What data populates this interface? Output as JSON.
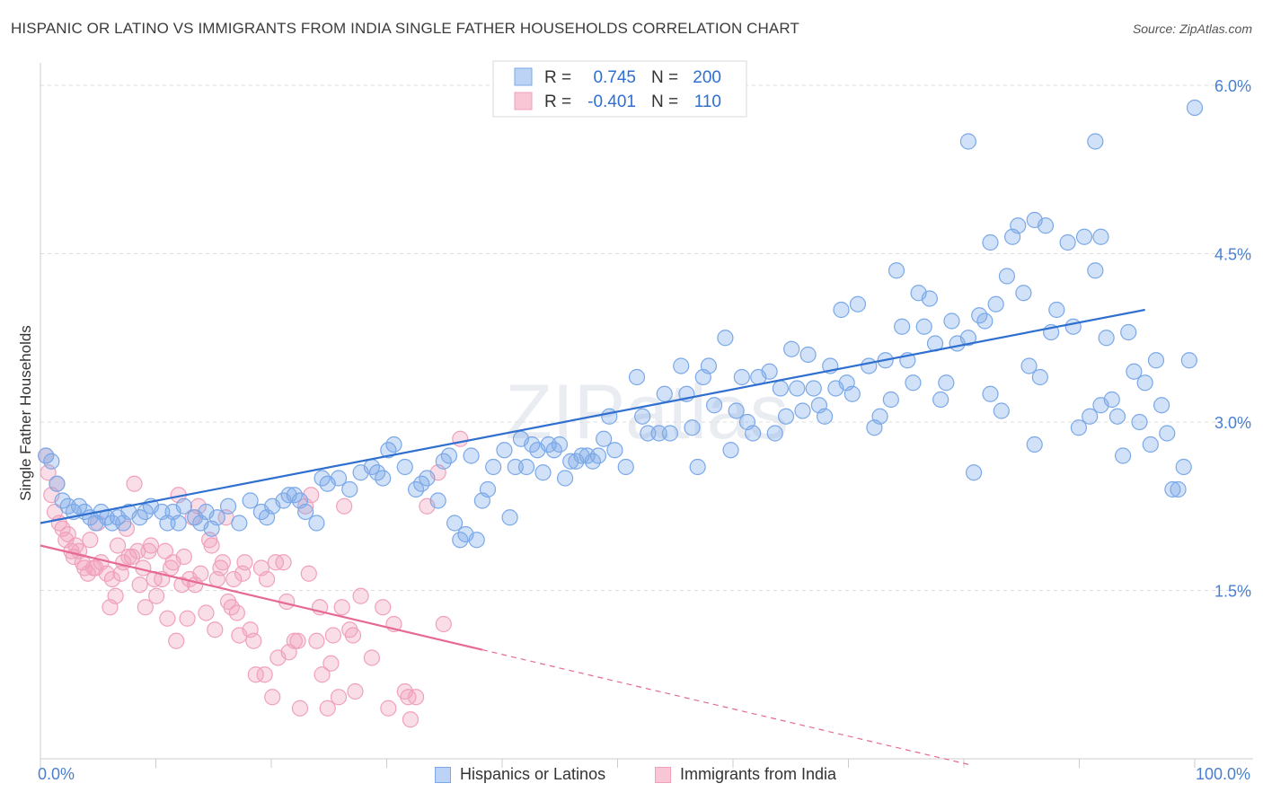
{
  "header": {
    "title": "HISPANIC OR LATINO VS IMMIGRANTS FROM INDIA SINGLE FATHER HOUSEHOLDS CORRELATION CHART",
    "source": "Source: ZipAtlas.com"
  },
  "colors": {
    "blue": "#7aa8e8",
    "blue_line": "#2f6fcf",
    "pink": "#f0a0ba",
    "pink_line": "#e66a93",
    "axis_text": "#4a7fcf"
  },
  "chart_data": {
    "type": "scatter",
    "xlabel": "",
    "ylabel": "Single Father Households",
    "xlim": [
      0,
      100
    ],
    "ylim": [
      0,
      6.2
    ],
    "x_ticks_labels": [
      "0.0%",
      "100.0%"
    ],
    "y_ticks": [
      1.5,
      3.0,
      4.5,
      6.0
    ],
    "y_tick_labels": [
      "1.5%",
      "3.0%",
      "4.5%",
      "6.0%"
    ],
    "watermark": "ZIPatlas",
    "legend": [
      {
        "r_label": "R =",
        "r_value": "0.745",
        "n_label": "N =",
        "n_value": "200"
      },
      {
        "r_label": "R =",
        "r_value": "-0.401",
        "n_label": "N =",
        "n_value": "110"
      }
    ],
    "series": [
      {
        "name": "Hispanics or Latinos",
        "trend": {
          "x": [
            0,
            100
          ],
          "y": [
            2.1,
            4.0
          ],
          "solid_to": 100
        },
        "points": [
          [
            0.5,
            2.7
          ],
          [
            1,
            2.65
          ],
          [
            1.5,
            2.45
          ],
          [
            2,
            2.3
          ],
          [
            2.5,
            2.25
          ],
          [
            3,
            2.2
          ],
          [
            3.5,
            2.25
          ],
          [
            4,
            2.2
          ],
          [
            4.5,
            2.15
          ],
          [
            5,
            2.1
          ],
          [
            5.5,
            2.2
          ],
          [
            6,
            2.15
          ],
          [
            6.5,
            2.1
          ],
          [
            7,
            2.15
          ],
          [
            7.5,
            2.1
          ],
          [
            8,
            2.2
          ],
          [
            9,
            2.15
          ],
          [
            9.5,
            2.2
          ],
          [
            10,
            2.25
          ],
          [
            11,
            2.2
          ],
          [
            11.5,
            2.1
          ],
          [
            12,
            2.2
          ],
          [
            12.5,
            2.1
          ],
          [
            13,
            2.25
          ],
          [
            14,
            2.15
          ],
          [
            14.5,
            2.1
          ],
          [
            15,
            2.2
          ],
          [
            15.5,
            2.05
          ],
          [
            16,
            2.15
          ],
          [
            17,
            2.25
          ],
          [
            18,
            2.1
          ],
          [
            19,
            2.3
          ],
          [
            20,
            2.2
          ],
          [
            20.5,
            2.15
          ],
          [
            21,
            2.25
          ],
          [
            22,
            2.3
          ],
          [
            22.5,
            2.35
          ],
          [
            23,
            2.35
          ],
          [
            23.5,
            2.3
          ],
          [
            24,
            2.2
          ],
          [
            25,
            2.1
          ],
          [
            25.5,
            2.5
          ],
          [
            26,
            2.45
          ],
          [
            27,
            2.5
          ],
          [
            28,
            2.4
          ],
          [
            29,
            2.55
          ],
          [
            30,
            2.6
          ],
          [
            30.5,
            2.55
          ],
          [
            31,
            2.5
          ],
          [
            31.5,
            2.75
          ],
          [
            32,
            2.8
          ],
          [
            33,
            2.6
          ],
          [
            34,
            2.4
          ],
          [
            34.5,
            2.45
          ],
          [
            35,
            2.5
          ],
          [
            36,
            2.3
          ],
          [
            36.5,
            2.65
          ],
          [
            37,
            2.7
          ],
          [
            37.5,
            2.1
          ],
          [
            38,
            1.95
          ],
          [
            38.5,
            2.0
          ],
          [
            39,
            2.7
          ],
          [
            39.5,
            1.95
          ],
          [
            40,
            2.3
          ],
          [
            40.5,
            2.4
          ],
          [
            41,
            2.6
          ],
          [
            42,
            2.75
          ],
          [
            42.5,
            2.15
          ],
          [
            43,
            2.6
          ],
          [
            43.5,
            2.85
          ],
          [
            44,
            2.6
          ],
          [
            44.5,
            2.8
          ],
          [
            45,
            2.75
          ],
          [
            45.5,
            2.55
          ],
          [
            46,
            2.8
          ],
          [
            46.5,
            2.75
          ],
          [
            47,
            2.8
          ],
          [
            47.5,
            2.5
          ],
          [
            48,
            2.65
          ],
          [
            48.5,
            2.65
          ],
          [
            49,
            2.7
          ],
          [
            49.5,
            2.7
          ],
          [
            50,
            2.65
          ],
          [
            50.5,
            2.7
          ],
          [
            51,
            2.85
          ],
          [
            51.5,
            3.05
          ],
          [
            52,
            2.75
          ],
          [
            53,
            2.6
          ],
          [
            54,
            3.4
          ],
          [
            54.5,
            3.05
          ],
          [
            55,
            2.9
          ],
          [
            56,
            2.9
          ],
          [
            56.5,
            3.25
          ],
          [
            57,
            2.9
          ],
          [
            58,
            3.5
          ],
          [
            58.5,
            3.25
          ],
          [
            59,
            2.95
          ],
          [
            59.5,
            2.6
          ],
          [
            60,
            3.4
          ],
          [
            60.5,
            3.5
          ],
          [
            61,
            3.15
          ],
          [
            62,
            3.75
          ],
          [
            62.5,
            2.75
          ],
          [
            63,
            3.1
          ],
          [
            63.5,
            3.4
          ],
          [
            64,
            3.0
          ],
          [
            64.5,
            2.9
          ],
          [
            65,
            3.4
          ],
          [
            66,
            3.45
          ],
          [
            66.5,
            2.9
          ],
          [
            67,
            3.3
          ],
          [
            67.5,
            3.05
          ],
          [
            68,
            3.65
          ],
          [
            68.5,
            3.3
          ],
          [
            69,
            3.1
          ],
          [
            69.5,
            3.6
          ],
          [
            70,
            3.3
          ],
          [
            70.5,
            3.15
          ],
          [
            71,
            3.05
          ],
          [
            71.5,
            3.5
          ],
          [
            72,
            3.3
          ],
          [
            72.5,
            4.0
          ],
          [
            73,
            3.35
          ],
          [
            73.5,
            3.25
          ],
          [
            74,
            4.05
          ],
          [
            75,
            3.5
          ],
          [
            75.5,
            2.95
          ],
          [
            76,
            3.05
          ],
          [
            76.5,
            3.55
          ],
          [
            77,
            3.2
          ],
          [
            77.5,
            4.35
          ],
          [
            78,
            3.85
          ],
          [
            78.5,
            3.55
          ],
          [
            79,
            3.35
          ],
          [
            79.5,
            4.15
          ],
          [
            80,
            3.85
          ],
          [
            80.5,
            4.1
          ],
          [
            81,
            3.7
          ],
          [
            81.5,
            3.2
          ],
          [
            82,
            3.35
          ],
          [
            82.5,
            3.9
          ],
          [
            83,
            3.7
          ],
          [
            84,
            3.75
          ],
          [
            84.5,
            2.55
          ],
          [
            85,
            3.95
          ],
          [
            85.5,
            3.9
          ],
          [
            86,
            3.25
          ],
          [
            86.5,
            4.05
          ],
          [
            87,
            3.1
          ],
          [
            87.5,
            4.3
          ],
          [
            88,
            4.65
          ],
          [
            88.5,
            4.75
          ],
          [
            89,
            4.15
          ],
          [
            89.5,
            3.5
          ],
          [
            90,
            2.8
          ],
          [
            90.5,
            3.4
          ],
          [
            91,
            4.75
          ],
          [
            91.5,
            3.8
          ],
          [
            92,
            4.0
          ],
          [
            93,
            4.6
          ],
          [
            93.5,
            3.85
          ],
          [
            94,
            2.95
          ],
          [
            94.5,
            4.65
          ],
          [
            95,
            3.05
          ],
          [
            95.5,
            4.35
          ],
          [
            96,
            3.15
          ],
          [
            96.5,
            3.75
          ],
          [
            97,
            3.2
          ],
          [
            97.5,
            3.05
          ],
          [
            98,
            2.7
          ],
          [
            98.5,
            3.8
          ],
          [
            99,
            3.45
          ],
          [
            99.5,
            3.0
          ],
          [
            100,
            3.35
          ],
          [
            100.5,
            2.8
          ],
          [
            101,
            3.55
          ],
          [
            101.5,
            3.15
          ],
          [
            102,
            2.9
          ],
          [
            102.5,
            2.4
          ],
          [
            103,
            2.4
          ],
          [
            103.5,
            2.6
          ],
          [
            104,
            3.55
          ],
          [
            104.5,
            5.8
          ],
          [
            84,
            5.5
          ],
          [
            95.5,
            5.5
          ],
          [
            90,
            4.8
          ],
          [
            96,
            4.65
          ],
          [
            86,
            4.6
          ]
        ]
      },
      {
        "name": "Immigrants from India",
        "trend": {
          "x": [
            0,
            84
          ],
          "y": [
            1.9,
            -0.05
          ],
          "solid_to": 40
        },
        "points": [
          [
            0.5,
            2.7
          ],
          [
            0.7,
            2.55
          ],
          [
            1,
            2.35
          ],
          [
            1.3,
            2.2
          ],
          [
            1.5,
            2.45
          ],
          [
            1.7,
            2.1
          ],
          [
            2,
            2.05
          ],
          [
            2.3,
            1.95
          ],
          [
            2.5,
            2.0
          ],
          [
            2.8,
            1.85
          ],
          [
            3,
            1.8
          ],
          [
            3.2,
            1.9
          ],
          [
            3.5,
            1.85
          ],
          [
            3.8,
            1.75
          ],
          [
            4,
            1.7
          ],
          [
            4.3,
            1.65
          ],
          [
            4.5,
            1.95
          ],
          [
            4.8,
            1.7
          ],
          [
            5,
            1.7
          ],
          [
            5.2,
            2.1
          ],
          [
            5.5,
            1.75
          ],
          [
            6,
            1.65
          ],
          [
            6.3,
            1.35
          ],
          [
            6.5,
            1.6
          ],
          [
            6.8,
            1.45
          ],
          [
            7,
            1.9
          ],
          [
            7.3,
            1.65
          ],
          [
            7.5,
            1.75
          ],
          [
            7.8,
            2.05
          ],
          [
            8,
            1.8
          ],
          [
            8.3,
            1.8
          ],
          [
            8.5,
            2.45
          ],
          [
            8.8,
            1.85
          ],
          [
            9,
            1.55
          ],
          [
            9.3,
            1.7
          ],
          [
            9.5,
            1.35
          ],
          [
            9.8,
            1.85
          ],
          [
            10,
            1.9
          ],
          [
            10.3,
            1.6
          ],
          [
            10.5,
            1.45
          ],
          [
            11,
            1.6
          ],
          [
            11.3,
            1.85
          ],
          [
            11.5,
            1.25
          ],
          [
            11.8,
            1.7
          ],
          [
            12,
            1.75
          ],
          [
            12.3,
            1.05
          ],
          [
            12.5,
            2.35
          ],
          [
            12.8,
            1.55
          ],
          [
            13,
            1.8
          ],
          [
            13.3,
            1.25
          ],
          [
            13.5,
            1.6
          ],
          [
            13.8,
            2.15
          ],
          [
            14,
            1.55
          ],
          [
            14.3,
            2.25
          ],
          [
            14.5,
            1.65
          ],
          [
            15,
            1.3
          ],
          [
            15.3,
            1.95
          ],
          [
            15.5,
            1.9
          ],
          [
            15.8,
            1.15
          ],
          [
            16,
            1.6
          ],
          [
            16.3,
            1.7
          ],
          [
            16.5,
            1.75
          ],
          [
            16.8,
            2.15
          ],
          [
            17,
            1.4
          ],
          [
            17.3,
            1.35
          ],
          [
            17.5,
            1.6
          ],
          [
            17.8,
            1.3
          ],
          [
            18,
            1.1
          ],
          [
            18.3,
            1.65
          ],
          [
            18.5,
            1.75
          ],
          [
            19,
            1.15
          ],
          [
            19.3,
            1.05
          ],
          [
            19.5,
            0.75
          ],
          [
            20,
            1.7
          ],
          [
            20.3,
            0.75
          ],
          [
            20.5,
            1.6
          ],
          [
            21,
            0.55
          ],
          [
            21.3,
            1.75
          ],
          [
            21.5,
            0.9
          ],
          [
            22,
            1.75
          ],
          [
            22.3,
            1.4
          ],
          [
            22.5,
            0.95
          ],
          [
            23,
            1.05
          ],
          [
            23.3,
            1.05
          ],
          [
            23.5,
            0.45
          ],
          [
            24,
            2.25
          ],
          [
            24.3,
            1.65
          ],
          [
            24.5,
            2.35
          ],
          [
            25,
            1.05
          ],
          [
            25.3,
            1.35
          ],
          [
            25.5,
            0.75
          ],
          [
            26,
            0.45
          ],
          [
            26.3,
            0.85
          ],
          [
            26.5,
            1.1
          ],
          [
            27,
            0.55
          ],
          [
            27.3,
            1.35
          ],
          [
            27.5,
            2.25
          ],
          [
            28,
            1.15
          ],
          [
            28.3,
            1.1
          ],
          [
            28.5,
            0.6
          ],
          [
            29,
            1.45
          ],
          [
            30,
            0.9
          ],
          [
            31,
            1.35
          ],
          [
            31.5,
            0.45
          ],
          [
            32,
            1.2
          ],
          [
            33,
            0.6
          ],
          [
            33.3,
            0.55
          ],
          [
            33.5,
            0.35
          ],
          [
            35,
            2.25
          ],
          [
            36,
            2.55
          ],
          [
            36.5,
            1.2
          ],
          [
            38,
            2.85
          ],
          [
            34,
            0.55
          ]
        ]
      }
    ]
  },
  "bottom_legend": {
    "items": [
      {
        "label": "Hispanics or Latinos"
      },
      {
        "label": "Immigrants from India"
      }
    ],
    "x_left_label": "0.0%",
    "x_right_label": "100.0%"
  }
}
